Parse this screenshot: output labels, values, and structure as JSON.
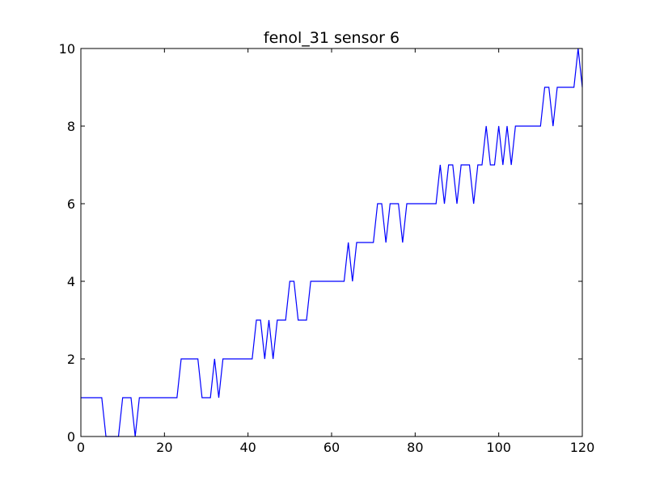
{
  "chart_data": {
    "type": "line",
    "title": "fenol_31 sensor 6",
    "xlabel": "",
    "ylabel": "",
    "xlim": [
      0,
      120
    ],
    "ylim": [
      0,
      10
    ],
    "xticks": [
      "0",
      "20",
      "40",
      "60",
      "80",
      "100",
      "120"
    ],
    "yticks": [
      "0",
      "2",
      "4",
      "6",
      "8",
      "10"
    ],
    "grid": false,
    "legend": "none",
    "series": [
      {
        "color": "#0000ff",
        "x": [
          0,
          1,
          2,
          3,
          4,
          5,
          6,
          7,
          8,
          9,
          10,
          11,
          12,
          13,
          14,
          15,
          16,
          17,
          18,
          19,
          20,
          21,
          22,
          23,
          24,
          25,
          26,
          27,
          28,
          29,
          30,
          31,
          32,
          33,
          34,
          35,
          36,
          37,
          38,
          39,
          40,
          41,
          42,
          43,
          44,
          45,
          46,
          47,
          48,
          49,
          50,
          51,
          52,
          53,
          54,
          55,
          56,
          57,
          58,
          59,
          60,
          61,
          62,
          63,
          64,
          65,
          66,
          67,
          68,
          69,
          70,
          71,
          72,
          73,
          74,
          75,
          76,
          77,
          78,
          79,
          80,
          81,
          82,
          83,
          84,
          85,
          86,
          87,
          88,
          89,
          90,
          91,
          92,
          93,
          94,
          95,
          96,
          97,
          98,
          99,
          100,
          101,
          102,
          103,
          104,
          105,
          106,
          107,
          108,
          109,
          110,
          111,
          112,
          113,
          114,
          115,
          116,
          117,
          118,
          119,
          120
        ],
        "y": [
          1,
          1,
          1,
          1,
          1,
          1,
          0,
          0,
          0,
          0,
          1,
          1,
          1,
          0,
          1,
          1,
          1,
          1,
          1,
          1,
          1,
          1,
          1,
          1,
          2,
          2,
          2,
          2,
          2,
          1,
          1,
          1,
          2,
          1,
          2,
          2,
          2,
          2,
          2,
          2,
          2,
          2,
          3,
          3,
          2,
          3,
          2,
          3,
          3,
          3,
          4,
          4,
          3,
          3,
          3,
          4,
          4,
          4,
          4,
          4,
          4,
          4,
          4,
          4,
          5,
          4,
          5,
          5,
          5,
          5,
          5,
          6,
          6,
          5,
          6,
          6,
          6,
          5,
          6,
          6,
          6,
          6,
          6,
          6,
          6,
          6,
          7,
          6,
          7,
          7,
          6,
          7,
          7,
          7,
          6,
          7,
          7,
          8,
          7,
          7,
          8,
          7,
          8,
          7,
          8,
          8,
          8,
          8,
          8,
          8,
          8,
          9,
          9,
          8,
          9,
          9,
          9,
          9,
          9,
          10,
          9
        ]
      }
    ]
  }
}
